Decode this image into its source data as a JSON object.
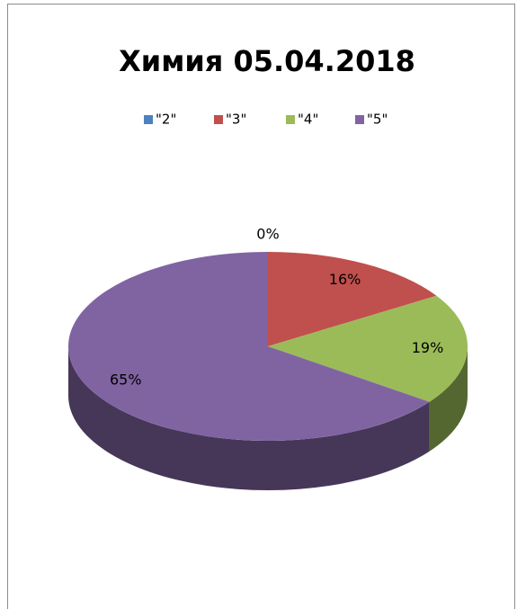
{
  "chart_data": {
    "type": "pie",
    "title": "Химия 05.04.2018",
    "categories": [
      "\"2\"",
      "\"3\"",
      "\"4\"",
      "\"5\""
    ],
    "values": [
      0,
      16,
      19,
      65
    ],
    "value_labels": [
      "0%",
      "16%",
      "19%",
      "65%"
    ],
    "colors": [
      "#4f81bd",
      "#c0504d",
      "#9bbb59",
      "#8064a2"
    ],
    "legend": "top"
  }
}
